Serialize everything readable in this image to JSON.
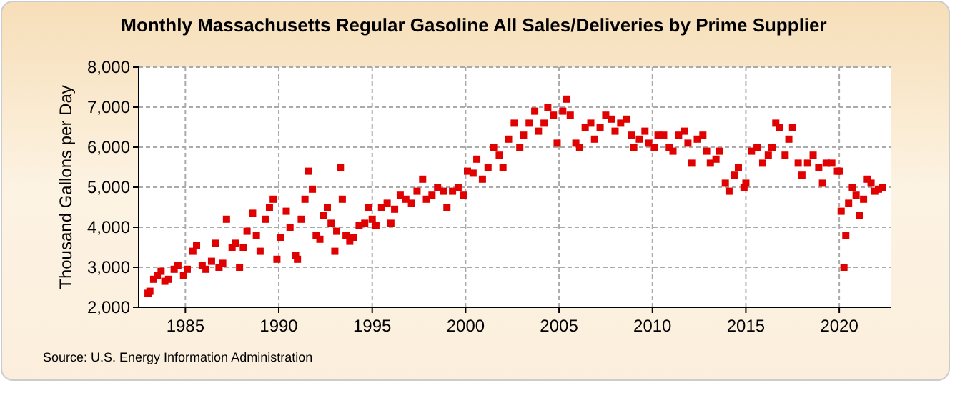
{
  "chart_data": {
    "type": "scatter",
    "title": "Monthly Massachusetts Regular Gasoline All Sales/Deliveries by Prime Supplier",
    "ylabel": "Thousand Gallons per Day",
    "annotations": [
      "Source: U.S. Energy Information Administration"
    ],
    "xlim": [
      1982.5,
      2022.75
    ],
    "xticks": [
      1985,
      1990,
      1995,
      2000,
      2005,
      2010,
      2015,
      2020
    ],
    "ylim": [
      2000,
      8000
    ],
    "yticks": [
      {
        "value": 2000,
        "label": "2,000"
      },
      {
        "value": 3000,
        "label": "3,000"
      },
      {
        "value": 4000,
        "label": "4,000"
      },
      {
        "value": 5000,
        "label": "5,000"
      },
      {
        "value": 6000,
        "label": "6,000"
      },
      {
        "value": 7000,
        "label": "7,000"
      },
      {
        "value": 8000,
        "label": "8,000"
      }
    ],
    "grid": true,
    "marker": "square",
    "series": [
      {
        "color": "#e00000",
        "x": [
          1983.0,
          1983.1,
          1983.3,
          1983.5,
          1983.7,
          1983.9,
          1984.1,
          1984.4,
          1984.6,
          1984.9,
          1985.1,
          1985.4,
          1985.6,
          1985.9,
          1986.1,
          1986.4,
          1986.6,
          1986.8,
          1987.0,
          1987.2,
          1987.5,
          1987.7,
          1987.9,
          1988.1,
          1988.3,
          1988.6,
          1988.8,
          1989.0,
          1989.3,
          1989.5,
          1989.7,
          1989.9,
          1990.1,
          1990.4,
          1990.6,
          1990.9,
          1991.0,
          1991.2,
          1991.4,
          1991.6,
          1991.8,
          1992.0,
          1992.2,
          1992.4,
          1992.6,
          1992.8,
          1993.0,
          1993.1,
          1993.3,
          1993.4,
          1993.6,
          1993.8,
          1994.0,
          1994.3,
          1994.6,
          1994.8,
          1995.0,
          1995.2,
          1995.5,
          1995.8,
          1996.0,
          1996.2,
          1996.5,
          1996.8,
          1997.1,
          1997.4,
          1997.7,
          1997.9,
          1998.2,
          1998.5,
          1998.8,
          1999.0,
          1999.3,
          1999.6,
          1999.9,
          2000.1,
          2000.4,
          2000.6,
          2000.9,
          2001.2,
          2001.5,
          2001.8,
          2002.0,
          2002.3,
          2002.6,
          2002.9,
          2003.1,
          2003.4,
          2003.7,
          2003.9,
          2004.2,
          2004.4,
          2004.7,
          2004.9,
          2005.2,
          2005.4,
          2005.6,
          2005.9,
          2006.1,
          2006.4,
          2006.7,
          2006.9,
          2007.2,
          2007.5,
          2007.8,
          2008.0,
          2008.3,
          2008.6,
          2008.9,
          2009.0,
          2009.3,
          2009.6,
          2009.8,
          2010.1,
          2010.3,
          2010.6,
          2010.9,
          2011.1,
          2011.4,
          2011.7,
          2011.9,
          2012.1,
          2012.4,
          2012.7,
          2012.9,
          2013.1,
          2013.4,
          2013.6,
          2013.9,
          2014.1,
          2014.4,
          2014.6,
          2014.9,
          2015.0,
          2015.3,
          2015.6,
          2015.9,
          2016.2,
          2016.4,
          2016.6,
          2016.8,
          2017.1,
          2017.3,
          2017.5,
          2017.8,
          2018.0,
          2018.3,
          2018.6,
          2018.9,
          2019.1,
          2019.3,
          2019.6,
          2019.9,
          2020.0,
          2020.1,
          2020.25,
          2020.35,
          2020.5,
          2020.7,
          2020.9,
          2021.1,
          2021.3,
          2021.5,
          2021.7,
          2021.9,
          2022.1,
          2022.3
        ],
        "values": [
          2350,
          2400,
          2700,
          2800,
          2900,
          2650,
          2700,
          2950,
          3050,
          2800,
          2950,
          3400,
          3550,
          3050,
          2950,
          3150,
          3600,
          3000,
          3100,
          4200,
          3500,
          3600,
          3000,
          3500,
          3900,
          4350,
          3800,
          3400,
          4200,
          4500,
          4700,
          3200,
          3750,
          4400,
          4000,
          3300,
          3200,
          4200,
          4700,
          5400,
          4950,
          3800,
          3700,
          4300,
          4500,
          4100,
          3400,
          3900,
          5500,
          4700,
          3800,
          3650,
          3750,
          4050,
          4100,
          4500,
          4200,
          4050,
          4500,
          4600,
          4100,
          4450,
          4800,
          4700,
          4600,
          4900,
          5200,
          4700,
          4800,
          5000,
          4900,
          4500,
          4900,
          5000,
          4800,
          5400,
          5350,
          5700,
          5200,
          5500,
          6000,
          5800,
          5500,
          6200,
          6600,
          6000,
          6300,
          6600,
          6900,
          6400,
          6600,
          7000,
          6800,
          6100,
          6900,
          7200,
          6800,
          6100,
          6000,
          6500,
          6600,
          6200,
          6500,
          6800,
          6700,
          6400,
          6600,
          6700,
          6300,
          6000,
          6200,
          6400,
          6100,
          6000,
          6300,
          6300,
          6000,
          5900,
          6300,
          6400,
          6100,
          5600,
          6200,
          6300,
          5900,
          5600,
          5700,
          5900,
          5100,
          4900,
          5300,
          5500,
          5000,
          5100,
          5900,
          6000,
          5600,
          5800,
          6000,
          6600,
          6500,
          5800,
          6200,
          6500,
          5600,
          5300,
          5600,
          5800,
          5500,
          5100,
          5600,
          5600,
          5400,
          5400,
          4400,
          3000,
          3800,
          4600,
          5000,
          4800,
          4300,
          4700,
          5200,
          5100,
          4900,
          4950,
          5000
        ]
      }
    ]
  }
}
